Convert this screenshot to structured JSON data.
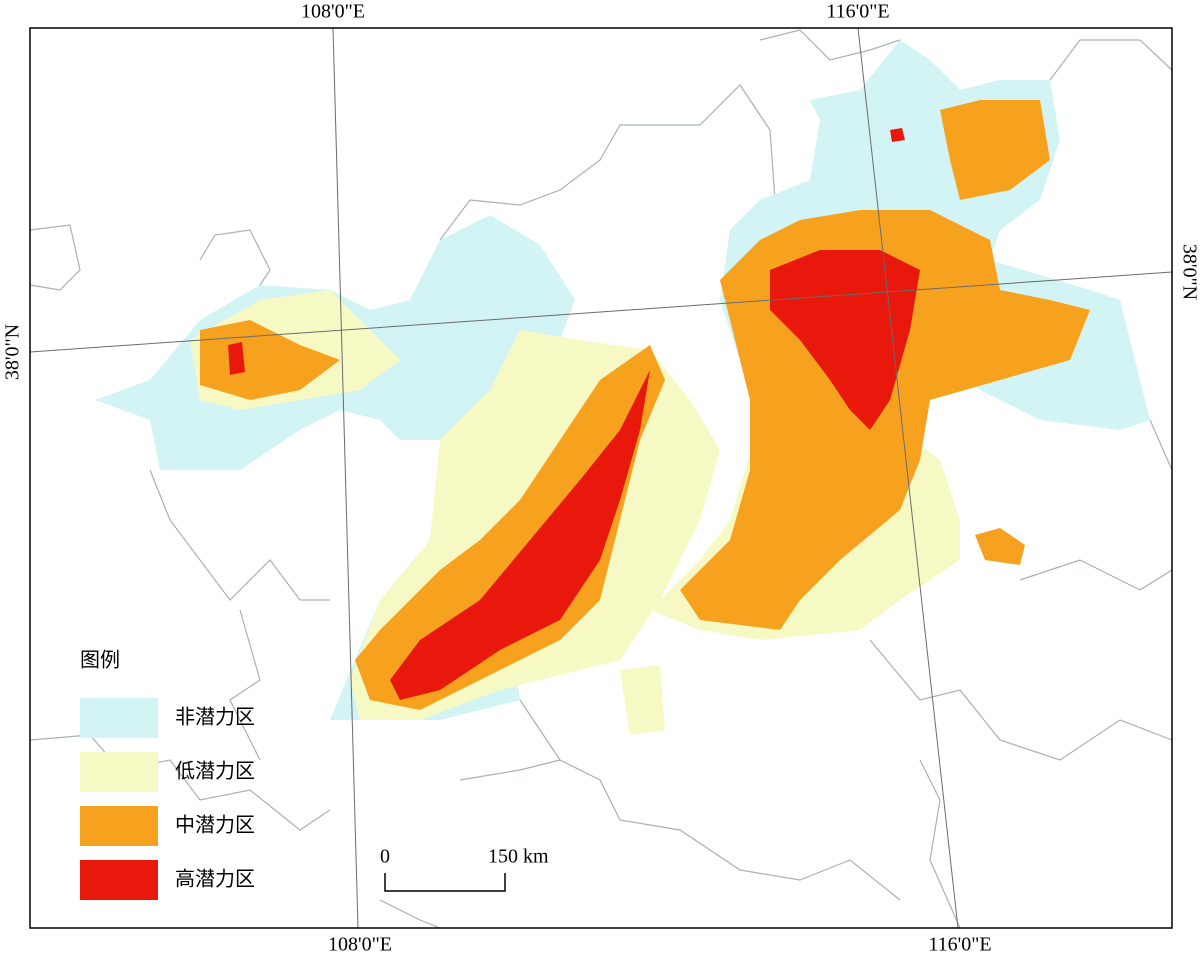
{
  "graticule": {
    "top": [
      "108'0\"E",
      "116'0\"E"
    ],
    "bottom": [
      "108'0\"E",
      "116'0\"E"
    ],
    "left": "38'0\"N",
    "right": "38'0\"N"
  },
  "legend": {
    "title": "图例",
    "items": [
      {
        "label": "非潜力区",
        "color": "#d2f4f4"
      },
      {
        "label": "低潜力区",
        "color": "#f6f9c4"
      },
      {
        "label": "中潜力区",
        "color": "#f7a21f"
      },
      {
        "label": "高潜力区",
        "color": "#e8180c"
      }
    ]
  },
  "scale_bar": {
    "labels": [
      "0",
      "150 km"
    ]
  }
}
